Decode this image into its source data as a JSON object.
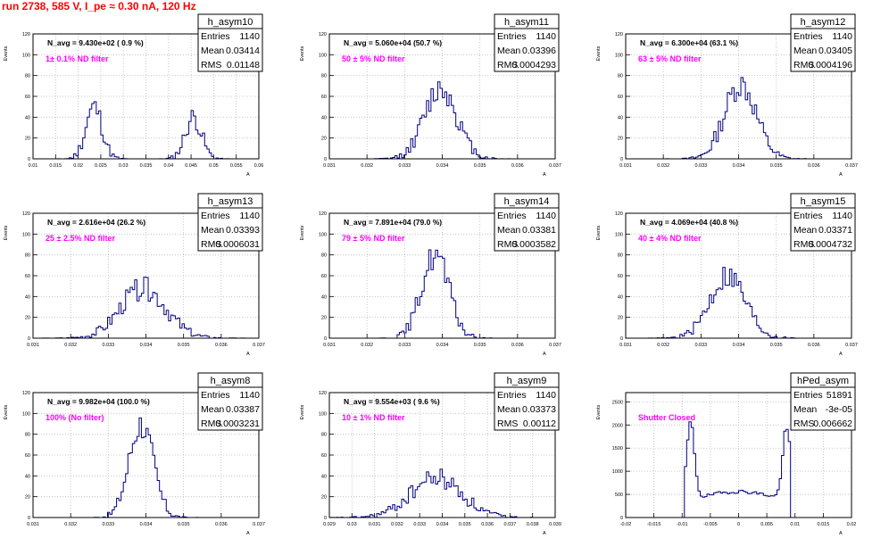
{
  "run_title": "run 2738,   585 V, I_pe ≈ 0.30 nA, 120 Hz",
  "stat_labels": {
    "entries": "Entries",
    "mean": "Mean",
    "rms": "RMS"
  },
  "colors": {
    "hist": "#000080",
    "grid": "#bbbbbb",
    "title": "#ff0000",
    "annotation": "#ff00ff",
    "frame": "#000000"
  },
  "chart_data": [
    {
      "type": "area",
      "name": "h_asym10",
      "navg": "N_avg = 9.430e+02 ( 0.9 %)",
      "filter": "1± 0.1% ND filter",
      "entries": "1140",
      "mean": "0.03414",
      "rms": "0.01148",
      "ylabel": "Events",
      "xlabel": "A",
      "xlim": [
        0.01,
        0.06
      ],
      "ylim": [
        0,
        120
      ],
      "xticks": [
        "0.01",
        "0.015",
        "0.02",
        "0.025",
        "0.03",
        "0.035",
        "0.04",
        "0.045",
        "0.05",
        "0.055",
        "0.06"
      ],
      "yticks": [
        "0",
        "20",
        "40",
        "60",
        "80",
        "100",
        "120"
      ],
      "peaks": [
        {
          "c": 0.0235,
          "s": 0.0018,
          "a": 50
        },
        {
          "c": 0.0455,
          "s": 0.0018,
          "a": 40
        }
      ],
      "seed": 11
    },
    {
      "type": "area",
      "name": "h_asym11",
      "navg": "N_avg = 5.060e+04 (50.7 %)",
      "filter": "50 ± 5% ND filter",
      "entries": "1140",
      "mean": "0.03396",
      "rms": "0.0004293",
      "ylabel": "Events",
      "xlabel": "A",
      "xlim": [
        0.031,
        0.037
      ],
      "ylim": [
        0,
        120
      ],
      "xticks": [
        "0.031",
        "0.032",
        "0.033",
        "0.034",
        "0.035",
        "0.036",
        "0.037"
      ],
      "yticks": [
        "0",
        "20",
        "40",
        "60",
        "80",
        "100",
        "120"
      ],
      "peaks": [
        {
          "c": 0.03396,
          "s": 0.00043,
          "a": 68
        }
      ],
      "seed": 12
    },
    {
      "type": "area",
      "name": "h_asym12",
      "navg": "N_avg = 6.300e+04 (63.1 %)",
      "filter": "63 ± 5% ND filter",
      "entries": "1140",
      "mean": "0.03405",
      "rms": "0.0004196",
      "ylabel": "Events",
      "xlabel": "A",
      "xlim": [
        0.031,
        0.037
      ],
      "ylim": [
        0,
        120
      ],
      "xticks": [
        "0.031",
        "0.032",
        "0.033",
        "0.034",
        "0.035",
        "0.036",
        "0.037"
      ],
      "yticks": [
        "0",
        "20",
        "40",
        "60",
        "80",
        "100",
        "120"
      ],
      "peaks": [
        {
          "c": 0.03405,
          "s": 0.00042,
          "a": 72
        }
      ],
      "seed": 13
    },
    {
      "type": "area",
      "name": "h_asym13",
      "navg": "N_avg = 2.616e+04 (26.2 %)",
      "filter": "25 ± 2.5% ND filter",
      "entries": "1140",
      "mean": "0.03393",
      "rms": "0.0006031",
      "ylabel": "Events",
      "xlabel": "A",
      "xlim": [
        0.031,
        0.037
      ],
      "ylim": [
        0,
        120
      ],
      "xticks": [
        "0.031",
        "0.032",
        "0.033",
        "0.034",
        "0.035",
        "0.036",
        "0.037"
      ],
      "yticks": [
        "0",
        "20",
        "40",
        "60",
        "80",
        "100",
        "120"
      ],
      "peaks": [
        {
          "c": 0.03393,
          "s": 0.0006,
          "a": 48
        }
      ],
      "seed": 14
    },
    {
      "type": "area",
      "name": "h_asym14",
      "navg": "N_avg = 7.891e+04 (79.0 %)",
      "filter": "79 ± 5% ND filter",
      "entries": "1140",
      "mean": "0.03381",
      "rms": "0.0003582",
      "ylabel": "Events",
      "xlabel": "A",
      "xlim": [
        0.031,
        0.037
      ],
      "ylim": [
        0,
        120
      ],
      "xticks": [
        "0.031",
        "0.032",
        "0.033",
        "0.034",
        "0.035",
        "0.036",
        "0.037"
      ],
      "yticks": [
        "0",
        "20",
        "40",
        "60",
        "80",
        "100",
        "120"
      ],
      "peaks": [
        {
          "c": 0.03381,
          "s": 0.00036,
          "a": 80
        }
      ],
      "seed": 15
    },
    {
      "type": "area",
      "name": "h_asym15",
      "navg": "N_avg = 4.069e+04 (40.8 %)",
      "filter": "40 ± 4% ND filter",
      "entries": "1140",
      "mean": "0.03371",
      "rms": "0.0004732",
      "ylabel": "Events",
      "xlabel": "A",
      "xlim": [
        0.031,
        0.037
      ],
      "ylim": [
        0,
        120
      ],
      "xticks": [
        "0.031",
        "0.032",
        "0.033",
        "0.034",
        "0.035",
        "0.036",
        "0.037"
      ],
      "yticks": [
        "0",
        "20",
        "40",
        "60",
        "80",
        "100",
        "120"
      ],
      "peaks": [
        {
          "c": 0.03371,
          "s": 0.00047,
          "a": 60
        }
      ],
      "seed": 16
    },
    {
      "type": "area",
      "name": "h_asym8",
      "navg": "N_avg = 9.982e+04 (100.0 %)",
      "filter": "100% (No filter)",
      "entries": "1140",
      "mean": "0.03387",
      "rms": "0.0003231",
      "ylabel": "Events",
      "xlabel": "A",
      "xlim": [
        0.031,
        0.037
      ],
      "ylim": [
        0,
        120
      ],
      "xticks": [
        "0.031",
        "0.032",
        "0.033",
        "0.034",
        "0.035",
        "0.036",
        "0.037"
      ],
      "yticks": [
        "0",
        "20",
        "40",
        "60",
        "80",
        "100",
        "120"
      ],
      "peaks": [
        {
          "c": 0.03387,
          "s": 0.00032,
          "a": 90
        }
      ],
      "seed": 17
    },
    {
      "type": "area",
      "name": "h_asym9",
      "navg": "N_avg = 9.554e+03 ( 9.6 %)",
      "filter": "10 ± 1% ND filter",
      "entries": "1140",
      "mean": "0.03373",
      "rms": "0.00112",
      "ylabel": "Events",
      "xlabel": "A",
      "xlim": [
        0.029,
        0.039
      ],
      "ylim": [
        0,
        120
      ],
      "xticks": [
        "0.029",
        "0.03",
        "0.031",
        "0.032",
        "0.033",
        "0.034",
        "0.035",
        "0.036",
        "0.037",
        "0.038",
        "0.039"
      ],
      "yticks": [
        "0",
        "20",
        "40",
        "60",
        "80",
        "100",
        "120"
      ],
      "peaks": [
        {
          "c": 0.03373,
          "s": 0.00112,
          "a": 38
        }
      ],
      "seed": 18
    },
    {
      "type": "area",
      "name": "hPed_asym",
      "navg": "",
      "filter": "Shutter Closed",
      "entries": "51891",
      "mean": "-3e-05",
      "rms": "0.006662",
      "ylabel": "Events",
      "xlabel": "A",
      "xlim": [
        -0.02,
        0.02
      ],
      "ylim": [
        0,
        2700
      ],
      "xticks": [
        "-0.02",
        "-0.015",
        "-0.01",
        "-0.005",
        "0",
        "0.005",
        "0.01",
        "0.015",
        "0.02"
      ],
      "yticks": [
        "0",
        "500",
        "1000",
        "1500",
        "2000",
        "2500"
      ],
      "peaks": [
        {
          "c": -0.0085,
          "s": 0.0007,
          "a": 1650
        },
        {
          "c": 0.0085,
          "s": 0.0007,
          "a": 1550
        }
      ],
      "base": 450,
      "cut": [
        -0.0094,
        0.0093
      ],
      "seed": 19
    }
  ]
}
